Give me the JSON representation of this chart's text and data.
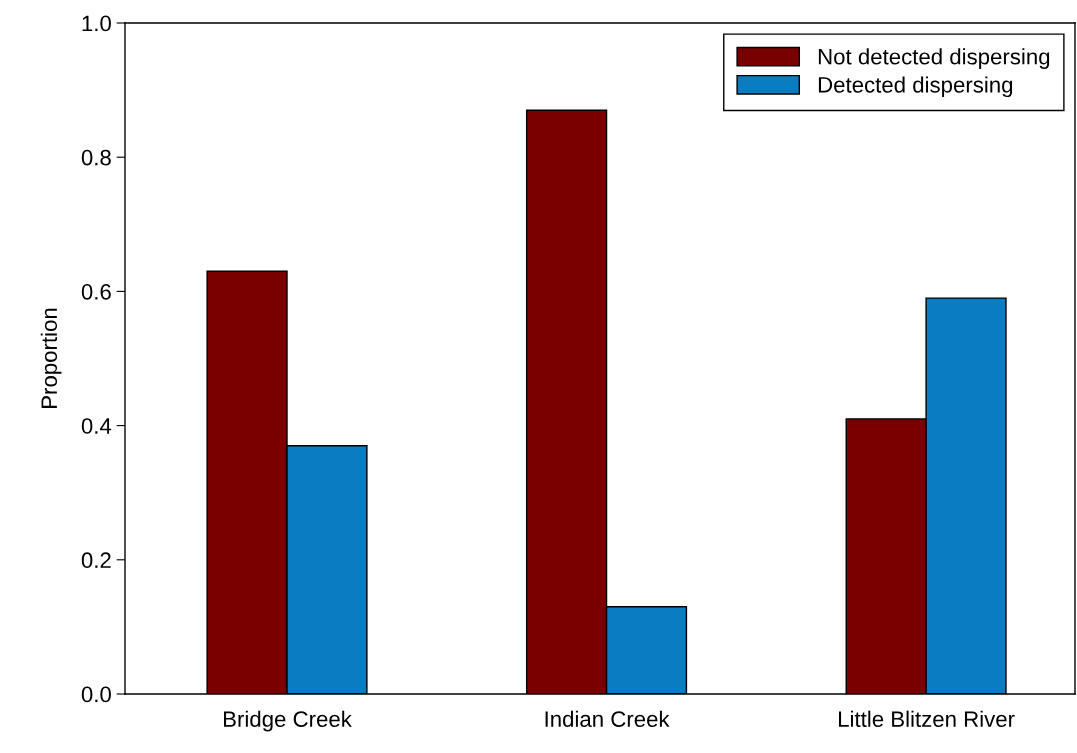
{
  "chart_data": {
    "type": "bar",
    "ylabel": "Proportion",
    "categories": [
      "Bridge Creek",
      "Indian Creek",
      "Little Blitzen River"
    ],
    "series": [
      {
        "name": "Not detected dispersing",
        "color": "#7a0000",
        "values": [
          0.63,
          0.87,
          0.41
        ]
      },
      {
        "name": "Detected dispersing",
        "color": "#0a7cc1",
        "values": [
          0.37,
          0.13,
          0.59
        ]
      }
    ],
    "ylim": [
      0,
      1.0
    ],
    "yticks": [
      {
        "value": 0,
        "label": "0.0"
      },
      0.2,
      0.4,
      0.6,
      0.8,
      {
        "value": 1.0,
        "label": "1.0"
      }
    ],
    "grid": false,
    "legend": "top right"
  }
}
